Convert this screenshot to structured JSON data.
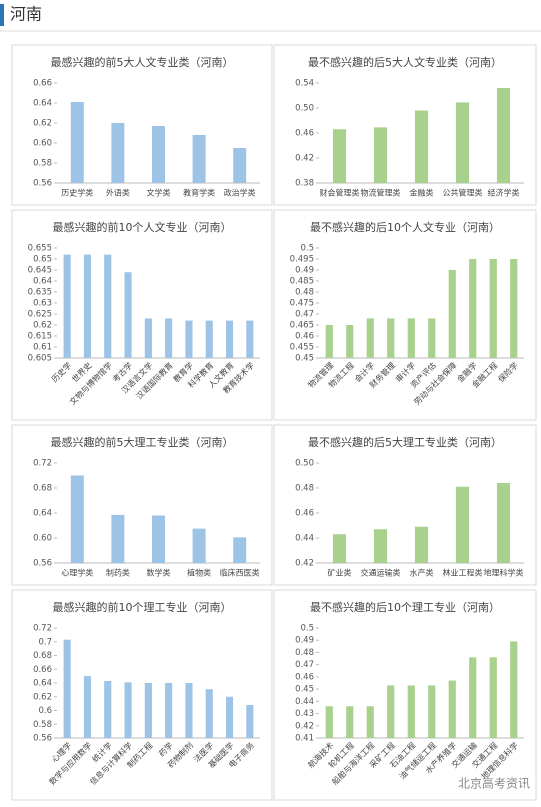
{
  "header": {
    "title": "河南"
  },
  "watermark": "北京高考资讯",
  "chart_data": [
    {
      "type": "bar",
      "title": "最感兴趣的前5大人文专业类（河南）",
      "color": "#9dc3e6",
      "categories": [
        "历史学类",
        "外语类",
        "文学类",
        "教育学类",
        "政治学类"
      ],
      "values": [
        0.641,
        0.62,
        0.617,
        0.608,
        0.595
      ],
      "ylim": [
        0.56,
        0.66
      ],
      "yticks": [
        0.56,
        0.58,
        {
          "value": 0.6,
          "label": "0.60"
        },
        0.62,
        0.64,
        0.66
      ]
    },
    {
      "type": "bar",
      "title": "最不感兴趣的后5大人文专业类（河南）",
      "color": "#a9d18e",
      "categories": [
        "财会管理类",
        "物流管理类",
        "金融类",
        "公共管理类",
        "经济学类"
      ],
      "values": [
        0.466,
        0.469,
        0.496,
        0.509,
        0.532
      ],
      "ylim": [
        0.38,
        0.54
      ],
      "yticks": [
        0.38,
        0.42,
        0.46,
        {
          "value": 0.5,
          "label": "0.50"
        },
        0.54
      ]
    },
    {
      "type": "bar",
      "title": "最感兴趣的前10个人文专业（河南）",
      "color": "#9dc3e6",
      "categories": [
        "历史学",
        "世界史",
        "文物与博物馆学",
        "考古学",
        "汉语言文学",
        "汉语国际教育",
        "教育学",
        "科学教育",
        "人文教育",
        "教育技术学"
      ],
      "values": [
        0.652,
        0.652,
        0.652,
        0.644,
        0.623,
        0.623,
        0.622,
        0.622,
        0.622,
        0.622
      ],
      "ylim": [
        0.605,
        0.655
      ],
      "yticks": [
        0.605,
        0.61,
        0.615,
        0.62,
        0.625,
        0.63,
        0.635,
        0.64,
        0.645,
        0.65,
        0.655
      ]
    },
    {
      "type": "bar",
      "title": "最不感兴趣的后10个人文专业（河南）",
      "color": "#a9d18e",
      "categories": [
        "物流管理",
        "物流工程",
        "会计学",
        "财务管理",
        "审计学",
        "资产评估",
        "劳动与社会保障",
        "金融学",
        "金融工程",
        "保险学"
      ],
      "values": [
        0.465,
        0.465,
        0.468,
        0.468,
        0.468,
        0.468,
        0.49,
        0.495,
        0.495,
        0.495
      ],
      "ylim": [
        0.45,
        0.5
      ],
      "yticks": [
        0.45,
        0.455,
        0.46,
        0.465,
        0.47,
        0.475,
        0.48,
        0.485,
        0.49,
        0.495,
        0.5
      ]
    },
    {
      "type": "bar",
      "title": "最感兴趣的前5大理工专业类（河南）",
      "color": "#9dc3e6",
      "categories": [
        "心理学类",
        "制药类",
        "数学类",
        "植物类",
        "临床西医类"
      ],
      "values": [
        0.7,
        0.637,
        0.636,
        0.615,
        0.601
      ],
      "ylim": [
        0.56,
        0.72
      ],
      "yticks": [
        0.56,
        {
          "value": 0.6,
          "label": "0.60"
        },
        0.64,
        0.68,
        0.72
      ]
    },
    {
      "type": "bar",
      "title": "最不感兴趣的后5大理工专业类（河南）",
      "color": "#a9d18e",
      "categories": [
        "矿业类",
        "交通运输类",
        "水产类",
        "林业工程类",
        "地理科学类"
      ],
      "values": [
        0.443,
        0.447,
        0.449,
        0.481,
        0.484
      ],
      "ylim": [
        0.42,
        0.5
      ],
      "yticks": [
        0.42,
        0.44,
        0.46,
        0.48,
        {
          "value": 0.5,
          "label": "0.50"
        }
      ]
    },
    {
      "type": "bar",
      "title": "最感兴趣的前10个理工专业（河南）",
      "color": "#9dc3e6",
      "categories": [
        "心理学",
        "数学与应用数学",
        "统计学",
        "信息与计算科学",
        "制药工程",
        "药学",
        "药物制剂",
        "法医学",
        "基础医学",
        "电子商务"
      ],
      "values": [
        0.703,
        0.65,
        0.643,
        0.641,
        0.64,
        0.64,
        0.64,
        0.631,
        0.62,
        0.608
      ],
      "ylim": [
        0.56,
        0.72
      ],
      "yticks": [
        0.56,
        0.58,
        0.6,
        0.62,
        0.64,
        0.66,
        0.68,
        0.7,
        0.72
      ]
    },
    {
      "type": "bar",
      "title": "最不感兴趣的后10个理工专业（河南）",
      "color": "#a9d18e",
      "categories": [
        "航海技术",
        "轮机工程",
        "船舶与海洋工程",
        "采矿工程",
        "石油工程",
        "油气储运工程",
        "水产养殖学",
        "交通运输",
        "交通工程",
        "地理信息科学"
      ],
      "values": [
        0.436,
        0.436,
        0.436,
        0.453,
        0.453,
        0.453,
        0.457,
        0.476,
        0.476,
        0.489
      ],
      "ylim": [
        0.41,
        0.5
      ],
      "yticks": [
        0.41,
        0.42,
        0.43,
        0.44,
        0.45,
        0.46,
        0.47,
        0.48,
        0.49,
        0.5
      ]
    }
  ]
}
